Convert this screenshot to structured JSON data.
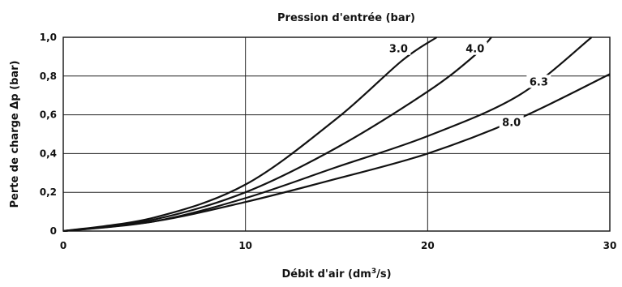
{
  "chart_data": {
    "type": "line",
    "title": "Pression d'entrée (bar)",
    "xlabel": "Débit d'air (dm³/s)",
    "ylabel": "Perte de charge Δp (bar)",
    "xlim": [
      0,
      30
    ],
    "ylim": [
      0,
      1.0
    ],
    "x_ticks": [
      0,
      10,
      20,
      30
    ],
    "y_ticks": [
      0,
      0.2,
      0.4,
      0.6,
      0.8,
      1.0
    ],
    "x_tick_labels": [
      "0",
      "10",
      "20",
      "30"
    ],
    "y_tick_labels": [
      "0",
      "0,2",
      "0,4",
      "0,6",
      "0,8",
      "1,0"
    ],
    "grid": true,
    "series": [
      {
        "name": "3.0",
        "x": [
          0,
          5,
          10,
          15,
          18.6,
          20.5
        ],
        "y": [
          0,
          0.07,
          0.24,
          0.58,
          0.88,
          1.0
        ]
      },
      {
        "name": "4.0",
        "x": [
          0,
          5,
          10,
          15,
          20,
          22.5,
          23.5
        ],
        "y": [
          0,
          0.06,
          0.2,
          0.43,
          0.72,
          0.9,
          1.0
        ]
      },
      {
        "name": "6.3",
        "x": [
          0,
          5,
          10,
          15,
          20,
          25,
          29
        ],
        "y": [
          0,
          0.05,
          0.17,
          0.33,
          0.49,
          0.7,
          1.0
        ]
      },
      {
        "name": "8.0",
        "x": [
          0,
          5,
          10,
          15,
          20,
          25,
          30
        ],
        "y": [
          0,
          0.05,
          0.15,
          0.27,
          0.4,
          0.58,
          0.81
        ]
      }
    ],
    "label_positions": [
      {
        "series": "3.0",
        "x": 18.4,
        "y": 0.93
      },
      {
        "series": "4.0",
        "x": 22.6,
        "y": 0.93
      },
      {
        "series": "6.3",
        "x": 26.1,
        "y": 0.76
      },
      {
        "series": "8.0",
        "x": 24.6,
        "y": 0.55
      }
    ]
  }
}
